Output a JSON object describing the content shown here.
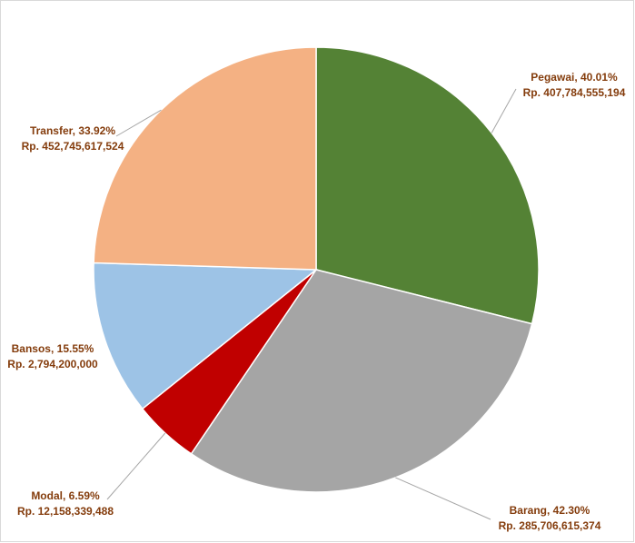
{
  "chart_data": {
    "type": "pie",
    "categories": [
      "Pegawai",
      "Barang",
      "Modal",
      "Bansos",
      "Transfer"
    ],
    "values": [
      40.01,
      42.3,
      6.59,
      15.55,
      33.92
    ],
    "value_labels": [
      "40.01%",
      "42.30%",
      "6.59%",
      "15.55%",
      "33.92%"
    ],
    "amount_labels": [
      "Rp. 407,784,555,194",
      "Rp. 285,706,615,374",
      "Rp. 12,158,339,488",
      "Rp. 2,794,200,000",
      "Rp. 452,745,617,524"
    ],
    "colors": [
      "#548235",
      "#a5a5a5",
      "#c00000",
      "#9dc3e6",
      "#f4b183"
    ]
  }
}
